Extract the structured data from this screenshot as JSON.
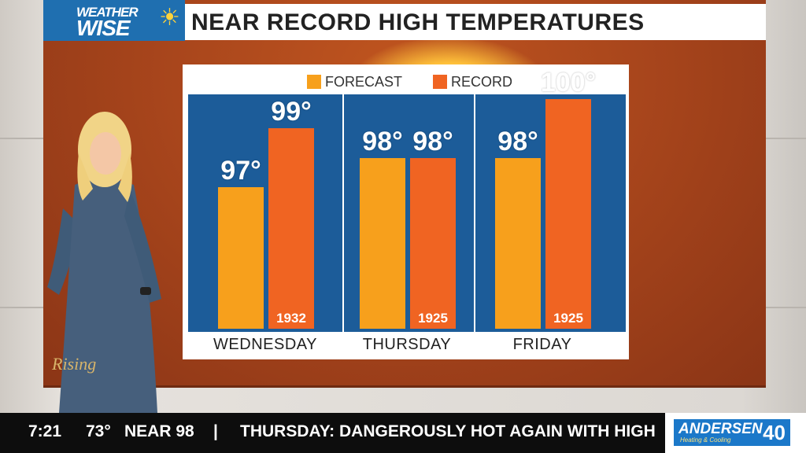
{
  "logo": {
    "line1": "WEATHER",
    "line2": "WISE"
  },
  "title": "NEAR RECORD HIGH TEMPERATURES",
  "colors": {
    "forecast": "#f7a01c",
    "record": "#f06422",
    "plot_bg": "#1c5c99",
    "screen": "#b04a1d"
  },
  "chart_data": {
    "type": "bar",
    "categories": [
      "WEDNESDAY",
      "THURSDAY",
      "FRIDAY"
    ],
    "series": [
      {
        "name": "FORECAST",
        "values": [
          97,
          98,
          98
        ],
        "labels": [
          "97°",
          "98°",
          "98°"
        ]
      },
      {
        "name": "RECORD",
        "values": [
          99,
          98,
          100
        ],
        "labels": [
          "99°",
          "98°",
          "100°"
        ],
        "years": [
          "1932",
          "1925",
          "1925"
        ]
      }
    ],
    "legend": "top",
    "grid": false
  },
  "show": {
    "name": "Rising"
  },
  "ticker": {
    "time": "7:21",
    "temp": "73°",
    "headline_1": "NEAR 98",
    "separator": "|",
    "headline_2": "THURSDAY: DANGEROUSLY HOT AGAIN WITH HIGH"
  },
  "sponsor": {
    "name": "ANDERSEN",
    "sub": "Heating & Cooling",
    "number": "40"
  }
}
